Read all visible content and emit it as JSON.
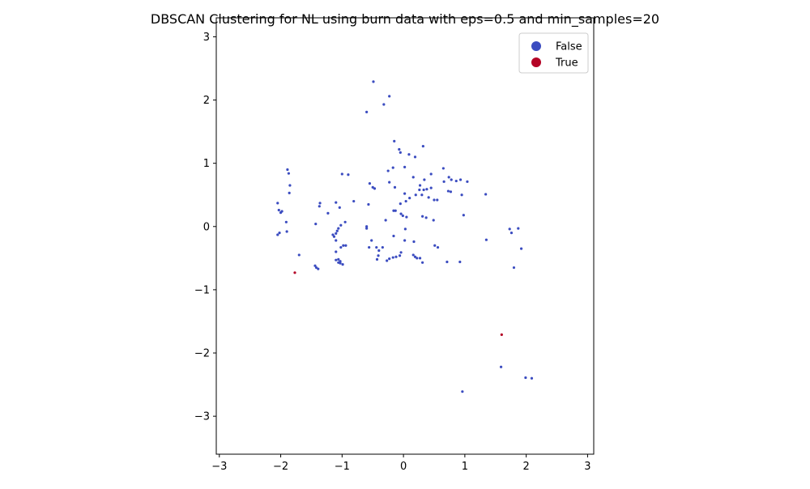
{
  "chart_data": {
    "type": "scatter",
    "title": "DBSCAN Clustering for NL using burn data with eps=0.5 and min_samples=20",
    "xlabel": "",
    "ylabel": "",
    "xlim": [
      -3.05,
      3.1
    ],
    "ylim": [
      -3.6,
      3.3
    ],
    "xticks": [
      -3,
      -2,
      -1,
      0,
      1,
      2,
      3
    ],
    "yticks": [
      -3,
      -2,
      -1,
      0,
      1,
      2,
      3
    ],
    "tick_labels_x": [
      "−3",
      "−2",
      "−1",
      "0",
      "1",
      "2",
      "3"
    ],
    "tick_labels_y": [
      "−3",
      "−2",
      "−1",
      "0",
      "1",
      "2",
      "3"
    ],
    "grid": false,
    "legend_position": "top-right",
    "legend": [
      {
        "label": "False",
        "color": "#3b4cc0"
      },
      {
        "label": "True",
        "color": "#b40426"
      }
    ],
    "series": [
      {
        "name": "False",
        "color": "#3b4cc0",
        "points": [
          [
            -0.49,
            2.29
          ],
          [
            -0.23,
            2.06
          ],
          [
            -0.32,
            1.93
          ],
          [
            -0.6,
            1.81
          ],
          [
            -0.15,
            1.35
          ],
          [
            -0.07,
            1.22
          ],
          [
            -0.05,
            1.17
          ],
          [
            0.09,
            1.14
          ],
          [
            0.19,
            1.1
          ],
          [
            0.32,
            1.27
          ],
          [
            -0.25,
            0.88
          ],
          [
            -0.17,
            0.93
          ],
          [
            0.02,
            0.94
          ],
          [
            0.16,
            0.78
          ],
          [
            0.34,
            0.74
          ],
          [
            0.45,
            0.83
          ],
          [
            0.65,
            0.92
          ],
          [
            0.66,
            0.71
          ],
          [
            0.74,
            0.78
          ],
          [
            0.78,
            0.74
          ],
          [
            0.86,
            0.72
          ],
          [
            0.93,
            0.74
          ],
          [
            1.04,
            0.71
          ],
          [
            1.34,
            0.51
          ],
          [
            0.95,
            0.5
          ],
          [
            0.73,
            0.56
          ],
          [
            0.77,
            0.55
          ],
          [
            -0.23,
            0.7
          ],
          [
            -0.14,
            0.62
          ],
          [
            -0.05,
            0.36
          ],
          [
            0.02,
            0.52
          ],
          [
            0.04,
            0.4
          ],
          [
            0.1,
            0.45
          ],
          [
            0.2,
            0.5
          ],
          [
            0.26,
            0.58
          ],
          [
            0.27,
            0.65
          ],
          [
            0.3,
            0.5
          ],
          [
            0.33,
            0.58
          ],
          [
            0.38,
            0.59
          ],
          [
            0.41,
            0.46
          ],
          [
            0.45,
            0.61
          ],
          [
            0.5,
            0.42
          ],
          [
            0.55,
            0.42
          ],
          [
            0.37,
            0.14
          ],
          [
            0.31,
            0.16
          ],
          [
            0.49,
            0.1
          ],
          [
            0.98,
            0.18
          ],
          [
            -0.29,
            0.1
          ],
          [
            -0.16,
            0.25
          ],
          [
            -0.13,
            0.25
          ],
          [
            -0.04,
            0.2
          ],
          [
            -0.01,
            0.17
          ],
          [
            0.05,
            0.15
          ],
          [
            0.03,
            -0.04
          ],
          [
            -0.55,
            0.68
          ],
          [
            -0.5,
            0.62
          ],
          [
            -0.47,
            0.6
          ],
          [
            -0.57,
            0.35
          ],
          [
            -1.89,
            0.9
          ],
          [
            -1.87,
            0.84
          ],
          [
            -1.85,
            0.65
          ],
          [
            -1.86,
            0.53
          ],
          [
            -2.05,
            0.37
          ],
          [
            -2.03,
            0.26
          ],
          [
            -2.0,
            0.22
          ],
          [
            -1.98,
            0.24
          ],
          [
            -1.91,
            0.07
          ],
          [
            -2.05,
            -0.13
          ],
          [
            -2.02,
            -0.1
          ],
          [
            -1.9,
            -0.08
          ],
          [
            -1.36,
            0.37
          ],
          [
            -1.37,
            0.32
          ],
          [
            -1.23,
            0.21
          ],
          [
            -1.1,
            0.38
          ],
          [
            -1.04,
            0.3
          ],
          [
            -1.0,
            0.83
          ],
          [
            -0.9,
            0.82
          ],
          [
            -0.81,
            0.4
          ],
          [
            -1.43,
            0.04
          ],
          [
            -1.15,
            -0.13
          ],
          [
            -1.13,
            -0.16
          ],
          [
            -1.1,
            -0.11
          ],
          [
            -1.08,
            -0.07
          ],
          [
            -1.06,
            -0.03
          ],
          [
            -1.02,
            0.02
          ],
          [
            -0.95,
            0.07
          ],
          [
            -1.1,
            -0.22
          ],
          [
            -0.98,
            -0.3
          ],
          [
            -0.94,
            -0.3
          ],
          [
            -1.02,
            -0.33
          ],
          [
            -1.1,
            -0.4
          ],
          [
            -1.1,
            -0.53
          ],
          [
            -1.06,
            -0.52
          ],
          [
            -1.03,
            -0.55
          ],
          [
            -1.03,
            -0.58
          ],
          [
            -0.99,
            -0.6
          ],
          [
            -1.06,
            -0.57
          ],
          [
            -1.7,
            -0.45
          ],
          [
            -1.44,
            -0.62
          ],
          [
            -1.42,
            -0.65
          ],
          [
            -1.39,
            -0.67
          ],
          [
            -0.6,
            -0.03
          ],
          [
            -0.6,
            0.0
          ],
          [
            -0.52,
            -0.22
          ],
          [
            -0.44,
            -0.33
          ],
          [
            -0.4,
            -0.38
          ],
          [
            -0.41,
            -0.46
          ],
          [
            -0.43,
            -0.52
          ],
          [
            -0.56,
            -0.33
          ],
          [
            -0.34,
            -0.33
          ],
          [
            -0.27,
            -0.54
          ],
          [
            -0.23,
            -0.51
          ],
          [
            -0.17,
            -0.49
          ],
          [
            -0.12,
            -0.48
          ],
          [
            -0.06,
            -0.46
          ],
          [
            -0.04,
            -0.41
          ],
          [
            0.02,
            -0.22
          ],
          [
            0.17,
            -0.24
          ],
          [
            -0.16,
            -0.15
          ],
          [
            0.16,
            -0.45
          ],
          [
            0.19,
            -0.48
          ],
          [
            0.22,
            -0.5
          ],
          [
            0.27,
            -0.5
          ],
          [
            0.31,
            -0.57
          ],
          [
            0.51,
            -0.3
          ],
          [
            0.56,
            -0.33
          ],
          [
            0.71,
            -0.56
          ],
          [
            0.92,
            -0.56
          ],
          [
            1.35,
            -0.21
          ],
          [
            1.73,
            -0.04
          ],
          [
            1.76,
            -0.1
          ],
          [
            1.87,
            -0.03
          ],
          [
            1.92,
            -0.35
          ],
          [
            1.8,
            -0.65
          ],
          [
            1.59,
            -2.22
          ],
          [
            1.99,
            -2.39
          ],
          [
            2.09,
            -2.4
          ],
          [
            0.96,
            -2.61
          ]
        ]
      },
      {
        "name": "True",
        "color": "#b40426",
        "points": [
          [
            -1.77,
            -0.73
          ],
          [
            1.6,
            -1.71
          ]
        ]
      }
    ]
  }
}
